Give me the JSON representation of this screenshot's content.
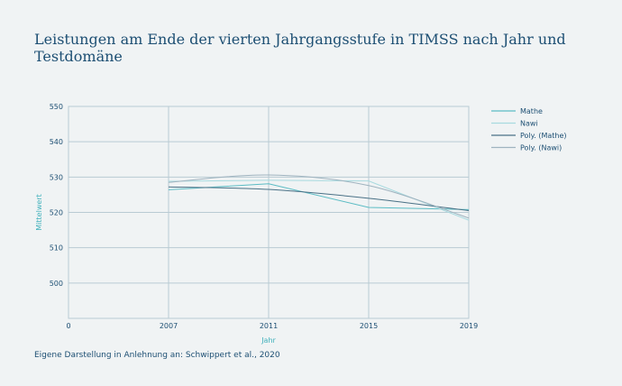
{
  "title": "Leistungen am Ende der vierten Jahrgangsstufe in TIMSS nach Jahr und Testdomäne",
  "source": "Eigene Darstellung in Anlehnung an: Schwippert et al., 2020",
  "chart_data": {
    "type": "line",
    "title": "Leistungen am Ende der vierten Jahrgangsstufe in TIMSS nach Jahr und Testdomäne",
    "xlabel": "Jahr",
    "ylabel": "Mittelwert",
    "x_ticks": [
      "0",
      "2007",
      "2011",
      "2015",
      "2019"
    ],
    "x": [
      "2007",
      "2011",
      "2015",
      "2019"
    ],
    "ylim": [
      490,
      550
    ],
    "y_ticks": [
      500,
      510,
      520,
      530,
      540,
      550
    ],
    "grid": true,
    "legend_position": "right",
    "series": [
      {
        "name": "Mathe",
        "color": "#5bbcc4",
        "values": [
          526.4,
          528.1,
          521.4,
          520.8
        ],
        "smooth": false
      },
      {
        "name": "Nawi",
        "color": "#a8dadf",
        "values": [
          528.8,
          529.1,
          528.9,
          517.8
        ],
        "smooth": false
      },
      {
        "name": "Poly. (Mathe)",
        "color": "#4a7186",
        "values": [
          527.2,
          526.5,
          524.0,
          520.5
        ],
        "smooth": true
      },
      {
        "name": "Poly. (Nawi)",
        "color": "#9fb3bf",
        "values": [
          528.5,
          530.6,
          527.6,
          518.4
        ],
        "smooth": true
      }
    ]
  }
}
